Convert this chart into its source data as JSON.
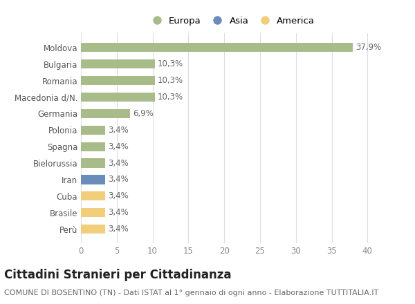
{
  "categories": [
    "Perù",
    "Brasile",
    "Cuba",
    "Iran",
    "Bielorussia",
    "Spagna",
    "Polonia",
    "Germania",
    "Macedonia d/N.",
    "Romania",
    "Bulgaria",
    "Moldova"
  ],
  "values": [
    3.4,
    3.4,
    3.4,
    3.4,
    3.4,
    3.4,
    3.4,
    6.9,
    10.3,
    10.3,
    10.3,
    37.9
  ],
  "labels": [
    "3,4%",
    "3,4%",
    "3,4%",
    "3,4%",
    "3,4%",
    "3,4%",
    "3,4%",
    "6,9%",
    "10,3%",
    "10,3%",
    "10,3%",
    "37,9%"
  ],
  "colors": [
    "#f0ce7a",
    "#f0ce7a",
    "#f0ce7a",
    "#6b8cba",
    "#a8bc8a",
    "#a8bc8a",
    "#a8bc8a",
    "#a8bc8a",
    "#a8bc8a",
    "#a8bc8a",
    "#a8bc8a",
    "#a8bc8a"
  ],
  "legend_labels": [
    "Europa",
    "Asia",
    "America"
  ],
  "legend_colors": [
    "#a8bc8a",
    "#6b8cba",
    "#f0ce7a"
  ],
  "title": "Cittadini Stranieri per Cittadinanza",
  "subtitle": "COMUNE DI BOSENTINO (TN) - Dati ISTAT al 1° gennaio di ogni anno - Elaborazione TUTTITALIA.IT",
  "xlim": [
    0,
    42
  ],
  "xticks": [
    0,
    5,
    10,
    15,
    20,
    25,
    30,
    35,
    40
  ],
  "background_color": "#ffffff",
  "grid_color": "#dddddd",
  "bar_height": 0.55,
  "title_fontsize": 12,
  "subtitle_fontsize": 8,
  "label_fontsize": 8.5,
  "tick_fontsize": 8.5,
  "legend_fontsize": 9.5
}
